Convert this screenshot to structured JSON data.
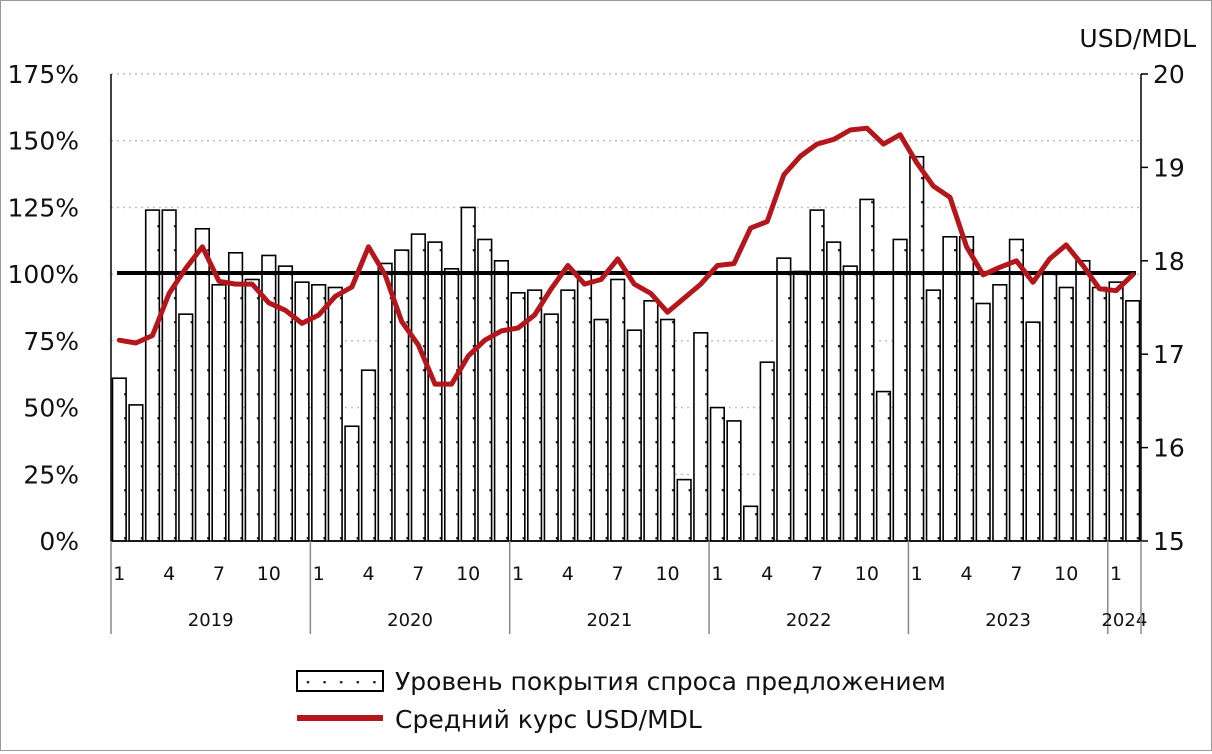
{
  "chart_data": {
    "type": "bar+line",
    "right_axis_unit": "USD/MDL",
    "left_axis": {
      "ylim": [
        0,
        175
      ],
      "ticks": [
        "0%",
        "25%",
        "50%",
        "75%",
        "100%",
        "125%",
        "150%",
        "175%"
      ]
    },
    "right_axis": {
      "ylim": [
        15,
        20
      ],
      "ticks": [
        "15",
        "16",
        "17",
        "18",
        "19",
        "20"
      ]
    },
    "reference_line": 100,
    "month_ticks": [
      "1",
      "4",
      "7",
      "10"
    ],
    "years": [
      {
        "label": "2019",
        "months": 12
      },
      {
        "label": "2020",
        "months": 12
      },
      {
        "label": "2021",
        "months": 12
      },
      {
        "label": "2022",
        "months": 12
      },
      {
        "label": "2023",
        "months": 12
      },
      {
        "label": "2024",
        "months": 2
      }
    ],
    "grid": "horizontal dotted",
    "legend_position": "bottom",
    "series": [
      {
        "name": "Уровень покрытия спроса предложением",
        "kind": "bar",
        "axis": "left",
        "unit": "%",
        "values": [
          61,
          51,
          124,
          124,
          85,
          117,
          96,
          108,
          98,
          107,
          103,
          97,
          96,
          95,
          43,
          64,
          104,
          109,
          115,
          112,
          102,
          125,
          113,
          105,
          93,
          94,
          85,
          94,
          101,
          83,
          98,
          79,
          90,
          83,
          23,
          78,
          50,
          45,
          13,
          67,
          106,
          101,
          124,
          112,
          103,
          128,
          56,
          113,
          144,
          94,
          114,
          114,
          89,
          96,
          113,
          82,
          100,
          95,
          105,
          95,
          97,
          90
        ]
      },
      {
        "name": "Средний курс USD/MDL",
        "kind": "line",
        "axis": "right",
        "color": "#b5161c",
        "values": [
          17.15,
          17.12,
          17.2,
          17.65,
          17.92,
          18.15,
          17.78,
          17.75,
          17.75,
          17.55,
          17.47,
          17.33,
          17.42,
          17.62,
          17.72,
          18.15,
          17.85,
          17.35,
          17.1,
          16.68,
          16.68,
          16.98,
          17.15,
          17.25,
          17.28,
          17.42,
          17.7,
          17.95,
          17.75,
          17.8,
          18.02,
          17.75,
          17.65,
          17.45,
          17.6,
          17.75,
          17.95,
          17.97,
          18.35,
          18.42,
          18.92,
          19.12,
          19.25,
          19.3,
          19.4,
          19.42,
          19.25,
          19.35,
          19.05,
          18.8,
          18.68,
          18.15,
          17.85,
          17.93,
          18.0,
          17.77,
          18.02,
          18.17,
          17.95,
          17.7,
          17.68,
          17.85
        ]
      }
    ]
  }
}
